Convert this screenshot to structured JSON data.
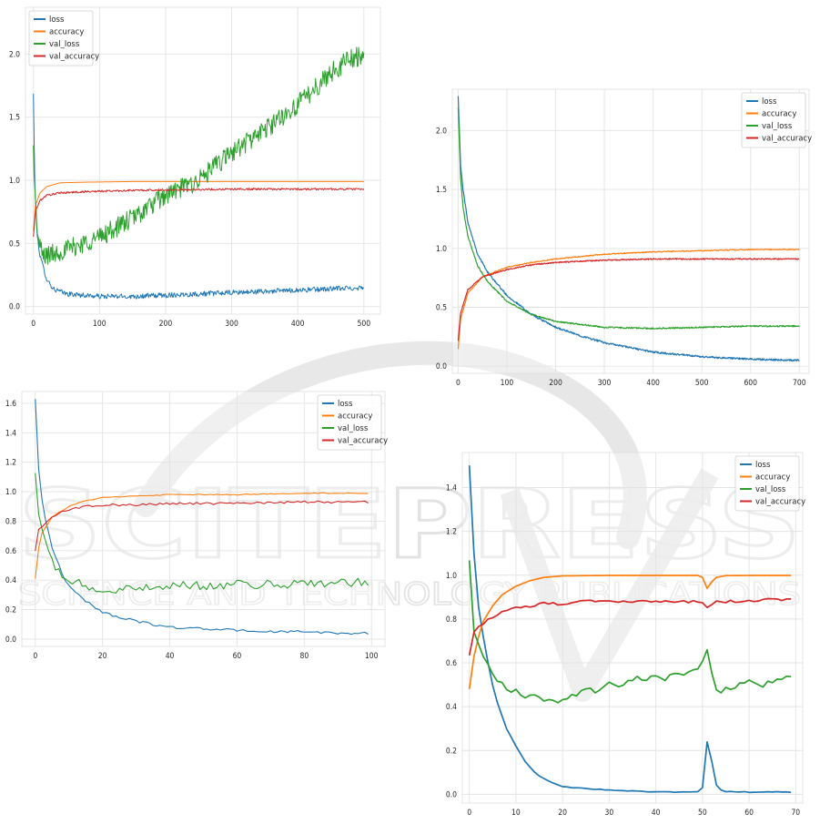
{
  "chart_data": [
    {
      "type": "line",
      "title": "",
      "xlabel": "",
      "ylabel": "",
      "xlim": [
        -12,
        525
      ],
      "ylim": [
        -0.06,
        2.37
      ],
      "x_ticks": [
        0,
        100,
        200,
        300,
        400,
        500
      ],
      "y_ticks": [
        0.0,
        0.5,
        1.0,
        1.5,
        2.0
      ],
      "grid": true,
      "legend_position": "top-left",
      "n_points": 500,
      "series": [
        {
          "name": "loss",
          "color": "#1f77b4",
          "x": [
            0,
            2,
            5,
            10,
            20,
            30,
            50,
            100,
            150,
            200,
            250,
            300,
            350,
            400,
            450,
            500
          ],
          "values": [
            1.68,
            1.0,
            0.6,
            0.4,
            0.22,
            0.14,
            0.1,
            0.08,
            0.08,
            0.09,
            0.1,
            0.11,
            0.12,
            0.13,
            0.14,
            0.15
          ],
          "noise": 0.02
        },
        {
          "name": "accuracy",
          "color": "#ff7f0e",
          "x": [
            0,
            3,
            10,
            20,
            40,
            80,
            150,
            300,
            500
          ],
          "values": [
            0.6,
            0.8,
            0.9,
            0.95,
            0.98,
            0.985,
            0.99,
            0.99,
            0.99
          ],
          "noise": 0.0
        },
        {
          "name": "val_loss",
          "color": "#2ca02c",
          "x": [
            0,
            3,
            8,
            15,
            30,
            60,
            100,
            150,
            200,
            250,
            300,
            350,
            400,
            450,
            475,
            500
          ],
          "values": [
            1.25,
            0.8,
            0.5,
            0.4,
            0.42,
            0.47,
            0.55,
            0.7,
            0.88,
            1.0,
            1.22,
            1.4,
            1.6,
            1.85,
            1.95,
            2.0
          ],
          "noise": 0.08
        },
        {
          "name": "val_accuracy",
          "color": "#d62728",
          "x": [
            0,
            3,
            10,
            20,
            40,
            80,
            150,
            300,
            500
          ],
          "values": [
            0.55,
            0.75,
            0.84,
            0.88,
            0.9,
            0.91,
            0.92,
            0.93,
            0.93
          ],
          "noise": 0.008
        }
      ]
    },
    {
      "type": "line",
      "title": "",
      "xlabel": "",
      "ylabel": "",
      "xlim": [
        -12,
        720
      ],
      "ylim": [
        -0.06,
        2.35
      ],
      "x_ticks": [
        0,
        100,
        200,
        300,
        400,
        500,
        600,
        700
      ],
      "y_ticks": [
        0.0,
        0.5,
        1.0,
        1.5,
        2.0
      ],
      "grid": true,
      "legend_position": "top-right",
      "n_points": 700,
      "series": [
        {
          "name": "loss",
          "color": "#1f77b4",
          "x": [
            0,
            5,
            10,
            20,
            40,
            60,
            100,
            150,
            200,
            250,
            300,
            400,
            500,
            600,
            700
          ],
          "values": [
            2.3,
            1.7,
            1.5,
            1.22,
            0.95,
            0.8,
            0.6,
            0.44,
            0.33,
            0.26,
            0.2,
            0.12,
            0.08,
            0.06,
            0.05
          ],
          "noise": 0.008
        },
        {
          "name": "accuracy",
          "color": "#ff7f0e",
          "x": [
            0,
            5,
            20,
            50,
            100,
            150,
            200,
            300,
            400,
            500,
            600,
            700
          ],
          "values": [
            0.15,
            0.4,
            0.62,
            0.76,
            0.84,
            0.88,
            0.91,
            0.95,
            0.97,
            0.98,
            0.99,
            0.99
          ],
          "noise": 0.004
        },
        {
          "name": "val_loss",
          "color": "#2ca02c",
          "x": [
            0,
            5,
            10,
            20,
            40,
            60,
            100,
            150,
            200,
            300,
            400,
            500,
            600,
            700
          ],
          "values": [
            2.2,
            1.6,
            1.35,
            1.1,
            0.85,
            0.72,
            0.55,
            0.44,
            0.38,
            0.33,
            0.32,
            0.33,
            0.34,
            0.34
          ],
          "noise": 0.006
        },
        {
          "name": "val_accuracy",
          "color": "#d62728",
          "x": [
            0,
            5,
            20,
            50,
            100,
            150,
            200,
            300,
            400,
            500,
            600,
            700
          ],
          "values": [
            0.22,
            0.45,
            0.65,
            0.76,
            0.82,
            0.86,
            0.88,
            0.9,
            0.91,
            0.91,
            0.91,
            0.91
          ],
          "noise": 0.005
        }
      ]
    },
    {
      "type": "line",
      "title": "",
      "xlabel": "",
      "ylabel": "",
      "xlim": [
        -4,
        104
      ],
      "ylim": [
        -0.05,
        1.68
      ],
      "x_ticks": [
        0,
        20,
        40,
        60,
        80,
        100
      ],
      "y_ticks": [
        0.0,
        0.2,
        0.4,
        0.6,
        0.8,
        1.0,
        1.2,
        1.4,
        1.6
      ],
      "grid": true,
      "legend_position": "top-right",
      "n_points": 100,
      "series": [
        {
          "name": "loss",
          "color": "#1f77b4",
          "x": [
            0,
            1,
            2,
            3,
            5,
            8,
            10,
            15,
            20,
            25,
            30,
            40,
            50,
            60,
            70,
            80,
            90,
            99
          ],
          "values": [
            1.63,
            1.15,
            0.95,
            0.82,
            0.62,
            0.44,
            0.36,
            0.26,
            0.18,
            0.15,
            0.12,
            0.08,
            0.07,
            0.06,
            0.05,
            0.05,
            0.04,
            0.04
          ],
          "noise": 0.008
        },
        {
          "name": "accuracy",
          "color": "#ff7f0e",
          "x": [
            0,
            1,
            2,
            5,
            10,
            15,
            20,
            30,
            40,
            60,
            80,
            99
          ],
          "values": [
            0.41,
            0.62,
            0.72,
            0.83,
            0.9,
            0.94,
            0.96,
            0.97,
            0.98,
            0.98,
            0.99,
            0.99
          ],
          "noise": 0.003
        },
        {
          "name": "val_loss",
          "color": "#2ca02c",
          "x": [
            0,
            1,
            2,
            4,
            6,
            10,
            15,
            20,
            30,
            40,
            50,
            60,
            70,
            80,
            90,
            99
          ],
          "values": [
            1.13,
            0.85,
            0.72,
            0.58,
            0.48,
            0.4,
            0.36,
            0.32,
            0.34,
            0.37,
            0.36,
            0.37,
            0.37,
            0.38,
            0.38,
            0.39
          ],
          "noise": 0.03
        },
        {
          "name": "val_accuracy",
          "color": "#d62728",
          "x": [
            0,
            1,
            3,
            5,
            10,
            15,
            20,
            30,
            40,
            60,
            80,
            99
          ],
          "values": [
            0.6,
            0.74,
            0.79,
            0.83,
            0.88,
            0.9,
            0.91,
            0.91,
            0.92,
            0.92,
            0.93,
            0.93
          ],
          "noise": 0.008
        }
      ]
    },
    {
      "type": "line",
      "title": "",
      "xlabel": "",
      "ylabel": "",
      "xlim": [
        -1.5,
        71.5
      ],
      "ylim": [
        -0.04,
        1.56
      ],
      "x_ticks": [
        0,
        10,
        20,
        30,
        40,
        50,
        60,
        70
      ],
      "y_ticks": [
        0.0,
        0.2,
        0.4,
        0.6,
        0.8,
        1.0,
        1.2,
        1.4
      ],
      "grid": true,
      "legend_position": "top-right",
      "n_points": 70,
      "series": [
        {
          "name": "loss",
          "color": "#1f77b4",
          "x": [
            0,
            1,
            2,
            3,
            4,
            5,
            6,
            7,
            8,
            10,
            12,
            14,
            16,
            18,
            20,
            25,
            30,
            35,
            40,
            45,
            48,
            49,
            50,
            51,
            52,
            53,
            54,
            55,
            60,
            65,
            69
          ],
          "values": [
            1.5,
            1.1,
            0.85,
            0.72,
            0.6,
            0.5,
            0.42,
            0.36,
            0.3,
            0.22,
            0.15,
            0.1,
            0.07,
            0.05,
            0.035,
            0.025,
            0.02,
            0.015,
            0.012,
            0.01,
            0.01,
            0.01,
            0.03,
            0.24,
            0.15,
            0.04,
            0.02,
            0.012,
            0.01,
            0.01,
            0.01
          ],
          "noise": 0.002
        },
        {
          "name": "accuracy",
          "color": "#ff7f0e",
          "x": [
            0,
            1,
            2,
            3,
            5,
            7,
            10,
            13,
            16,
            20,
            25,
            30,
            40,
            49,
            50,
            51,
            52,
            53,
            55,
            60,
            65,
            69
          ],
          "values": [
            0.48,
            0.63,
            0.72,
            0.79,
            0.86,
            0.91,
            0.95,
            0.975,
            0.99,
            0.997,
            0.998,
            0.999,
            0.999,
            0.999,
            0.99,
            0.94,
            0.97,
            0.99,
            0.998,
            0.999,
            0.999,
            0.999
          ],
          "noise": 0.0
        },
        {
          "name": "val_loss",
          "color": "#2ca02c",
          "x": [
            0,
            1,
            2,
            3,
            4,
            5,
            6,
            7,
            8,
            9,
            10,
            12,
            14,
            16,
            18,
            20,
            22,
            25,
            28,
            30,
            32,
            35,
            38,
            40,
            42,
            45,
            48,
            50,
            51,
            52,
            53,
            55,
            57,
            60,
            63,
            66,
            69
          ],
          "values": [
            1.06,
            0.75,
            0.68,
            0.62,
            0.6,
            0.55,
            0.52,
            0.5,
            0.47,
            0.46,
            0.49,
            0.44,
            0.45,
            0.43,
            0.42,
            0.43,
            0.45,
            0.48,
            0.47,
            0.5,
            0.49,
            0.53,
            0.52,
            0.54,
            0.53,
            0.55,
            0.56,
            0.6,
            0.65,
            0.56,
            0.47,
            0.48,
            0.49,
            0.51,
            0.5,
            0.52,
            0.53
          ],
          "noise": 0.012
        },
        {
          "name": "val_accuracy",
          "color": "#d62728",
          "x": [
            0,
            1,
            2,
            3,
            5,
            7,
            10,
            13,
            16,
            20,
            25,
            30,
            40,
            49,
            50,
            51,
            52,
            53,
            55,
            60,
            65,
            69
          ],
          "values": [
            0.63,
            0.74,
            0.76,
            0.78,
            0.81,
            0.83,
            0.85,
            0.86,
            0.87,
            0.87,
            0.88,
            0.88,
            0.88,
            0.88,
            0.87,
            0.85,
            0.87,
            0.88,
            0.88,
            0.88,
            0.89,
            0.89
          ],
          "noise": 0.006
        }
      ]
    }
  ],
  "watermark": {
    "main": "SCITEPRESS",
    "sub": "SCIENCE AND TECHNOLOGY PUBLICATIONS"
  }
}
